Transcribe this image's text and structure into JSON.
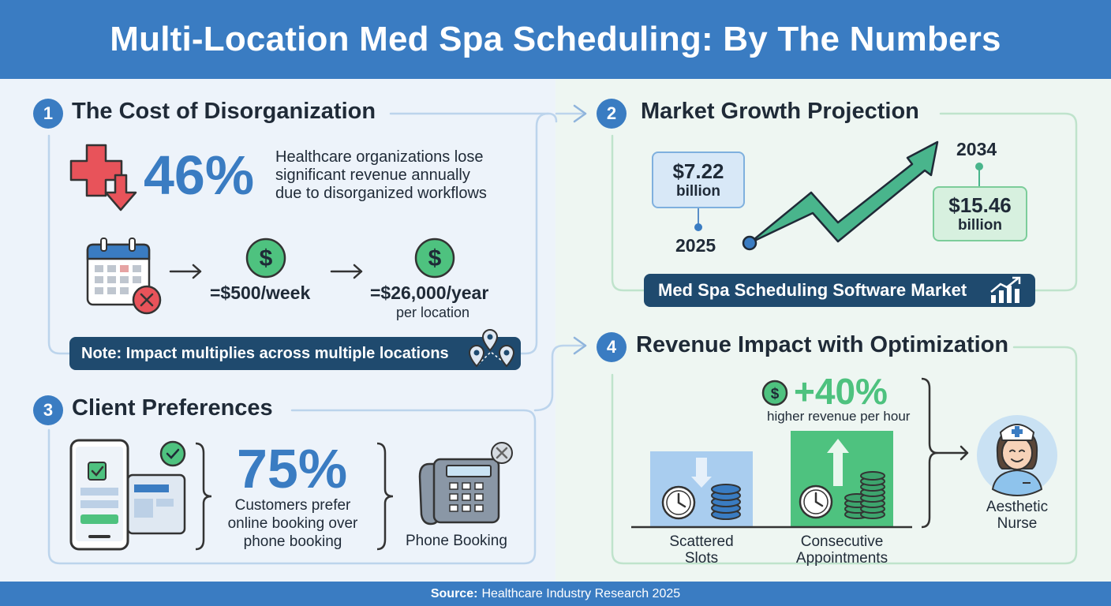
{
  "header": {
    "title": "Multi-Location Med Spa Scheduling: By The Numbers"
  },
  "section1": {
    "number": "1",
    "title": "The Cost of Disorganization",
    "stat": "46%",
    "stat_desc": [
      "Healthcare organizations lose",
      "significant revenue annually",
      "due to disorganized workflows"
    ],
    "weekly_cost": "=$500/week",
    "yearly_cost": "=$26,000/year",
    "yearly_sub": "per location",
    "note": "Note: Impact multiplies across multiple locations"
  },
  "section2": {
    "number": "2",
    "title": "Market Growth Projection",
    "start_value": "$7.22",
    "start_unit": "billion",
    "start_year": "2025",
    "end_value": "$15.46",
    "end_unit": "billion",
    "end_year": "2034",
    "market_label": "Med Spa Scheduling Software Market"
  },
  "section3": {
    "number": "3",
    "title": "Client Preferences",
    "stat": "75%",
    "stat_desc": [
      "Customers prefer",
      "online booking over",
      "phone booking"
    ],
    "phone_label": "Phone Booking"
  },
  "section4": {
    "number": "4",
    "title": "Revenue Impact with Optimization",
    "stat": "+40%",
    "stat_desc": "higher revenue per hour",
    "scattered_label": [
      "Scattered",
      "Slots"
    ],
    "consecutive_label": [
      "Consecutive",
      "Appointments"
    ],
    "nurse_label": [
      "Aesthetic",
      "Nurse"
    ]
  },
  "footer": {
    "source_label": "Source:",
    "source_text": "Healthcare Industry Research 2025"
  },
  "colors": {
    "primary": "#3a7cc2",
    "navy": "#1f4a6e",
    "red": "#e8535a",
    "green": "#4ec27f",
    "dark": "#1f2a37"
  }
}
